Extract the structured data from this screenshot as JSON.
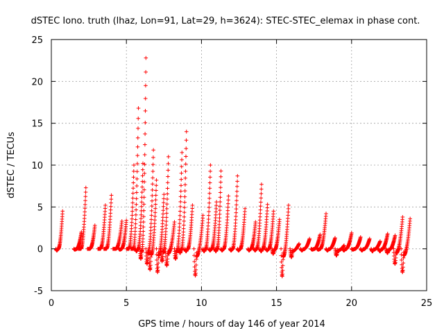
{
  "chart_data": {
    "type": "scatter",
    "title": "dSTEC Iono. truth (lhaz, Lon=91, Lat=29, h=3624): STEC-STEC_elemax in phase cont.",
    "xlabel": "GPS time / hours of day 146 of year 2014",
    "ylabel": "dSTEC  / TECUs",
    "xlim": [
      0,
      25
    ],
    "ylim": [
      -5,
      25
    ],
    "xticks": [
      0,
      5,
      10,
      15,
      20,
      25
    ],
    "yticks": [
      -5,
      0,
      5,
      10,
      15,
      20,
      25
    ],
    "grid": true,
    "marker": "+",
    "series": [
      {
        "color": "#ff0000",
        "arcs": [
          {
            "start": 0.3,
            "end": 0.75,
            "peak": 4.5,
            "min": -0.2
          },
          {
            "start": 1.5,
            "end": 2.0,
            "peak": 2.0,
            "min": -0.1
          },
          {
            "start": 1.8,
            "end": 2.3,
            "peak": 7.3,
            "min": 0.0
          },
          {
            "start": 2.4,
            "end": 2.9,
            "peak": 2.8,
            "min": 0.0
          },
          {
            "start": 3.1,
            "end": 3.6,
            "peak": 5.2,
            "min": 0.0
          },
          {
            "start": 3.5,
            "end": 4.0,
            "peak": 6.4,
            "min": 0.0
          },
          {
            "start": 4.1,
            "end": 4.7,
            "peak": 3.3,
            "min": 0.0
          },
          {
            "start": 4.5,
            "end": 5.0,
            "peak": 3.4,
            "min": -0.1
          },
          {
            "start": 5.0,
            "end": 5.5,
            "peak": 10.0,
            "min": 0.0
          },
          {
            "start": 5.3,
            "end": 5.8,
            "peak": 16.8,
            "min": 0.0
          },
          {
            "start": 5.6,
            "end": 6.1,
            "peak": 10.2,
            "min": -0.3
          },
          {
            "start": 5.9,
            "end": 6.3,
            "peak": 22.8,
            "min": -1.2
          },
          {
            "start": 6.3,
            "end": 6.8,
            "peak": 11.8,
            "min": -1.8
          },
          {
            "start": 6.5,
            "end": 7.0,
            "peak": 8.2,
            "min": -2.5
          },
          {
            "start": 7.0,
            "end": 7.5,
            "peak": 6.5,
            "min": -2.8
          },
          {
            "start": 7.3,
            "end": 7.8,
            "peak": 11.0,
            "min": -1.5
          },
          {
            "start": 7.6,
            "end": 8.2,
            "peak": 3.2,
            "min": -2.0
          },
          {
            "start": 8.2,
            "end": 8.7,
            "peak": 11.5,
            "min": -1.2
          },
          {
            "start": 8.5,
            "end": 9.0,
            "peak": 14.0,
            "min": -0.5
          },
          {
            "start": 8.9,
            "end": 9.4,
            "peak": 5.2,
            "min": -0.3
          },
          {
            "start": 9.5,
            "end": 10.1,
            "peak": 4.0,
            "min": -3.2
          },
          {
            "start": 10.1,
            "end": 10.6,
            "peak": 10.0,
            "min": -0.3
          },
          {
            "start": 10.5,
            "end": 11.0,
            "peak": 5.6,
            "min": -0.2
          },
          {
            "start": 10.9,
            "end": 11.3,
            "peak": 9.3,
            "min": -0.3
          },
          {
            "start": 11.3,
            "end": 11.8,
            "peak": 6.3,
            "min": -0.2
          },
          {
            "start": 11.9,
            "end": 12.4,
            "peak": 8.7,
            "min": -0.2
          },
          {
            "start": 12.4,
            "end": 12.9,
            "peak": 4.8,
            "min": -0.2
          },
          {
            "start": 13.1,
            "end": 13.6,
            "peak": 3.2,
            "min": -0.2
          },
          {
            "start": 13.5,
            "end": 14.0,
            "peak": 7.7,
            "min": -0.2
          },
          {
            "start": 13.9,
            "end": 14.4,
            "peak": 5.3,
            "min": -0.3
          },
          {
            "start": 14.3,
            "end": 14.8,
            "peak": 4.5,
            "min": -0.2
          },
          {
            "start": 14.7,
            "end": 15.2,
            "peak": 3.5,
            "min": -0.6
          },
          {
            "start": 15.3,
            "end": 15.8,
            "peak": 5.2,
            "min": -3.3
          },
          {
            "start": 15.9,
            "end": 16.5,
            "peak": 0.6,
            "min": -1.0
          },
          {
            "start": 16.6,
            "end": 17.2,
            "peak": 1.2,
            "min": -0.2
          },
          {
            "start": 17.3,
            "end": 17.9,
            "peak": 1.7,
            "min": -0.1
          },
          {
            "start": 17.7,
            "end": 18.3,
            "peak": 4.2,
            "min": -0.1
          },
          {
            "start": 18.3,
            "end": 18.9,
            "peak": 1.3,
            "min": -0.2
          },
          {
            "start": 18.9,
            "end": 19.5,
            "peak": 0.4,
            "min": -0.8
          },
          {
            "start": 19.4,
            "end": 20.0,
            "peak": 1.9,
            "min": -0.2
          },
          {
            "start": 20.0,
            "end": 20.6,
            "peak": 1.4,
            "min": -0.1
          },
          {
            "start": 20.6,
            "end": 21.2,
            "peak": 1.2,
            "min": -0.2
          },
          {
            "start": 21.3,
            "end": 21.9,
            "peak": 0.9,
            "min": -0.3
          },
          {
            "start": 21.8,
            "end": 22.4,
            "peak": 1.8,
            "min": -0.3
          },
          {
            "start": 22.3,
            "end": 22.9,
            "peak": 1.6,
            "min": -0.5
          },
          {
            "start": 22.8,
            "end": 23.4,
            "peak": 3.8,
            "min": -1.8
          },
          {
            "start": 23.3,
            "end": 23.9,
            "peak": 3.6,
            "min": -2.8
          }
        ]
      }
    ]
  }
}
